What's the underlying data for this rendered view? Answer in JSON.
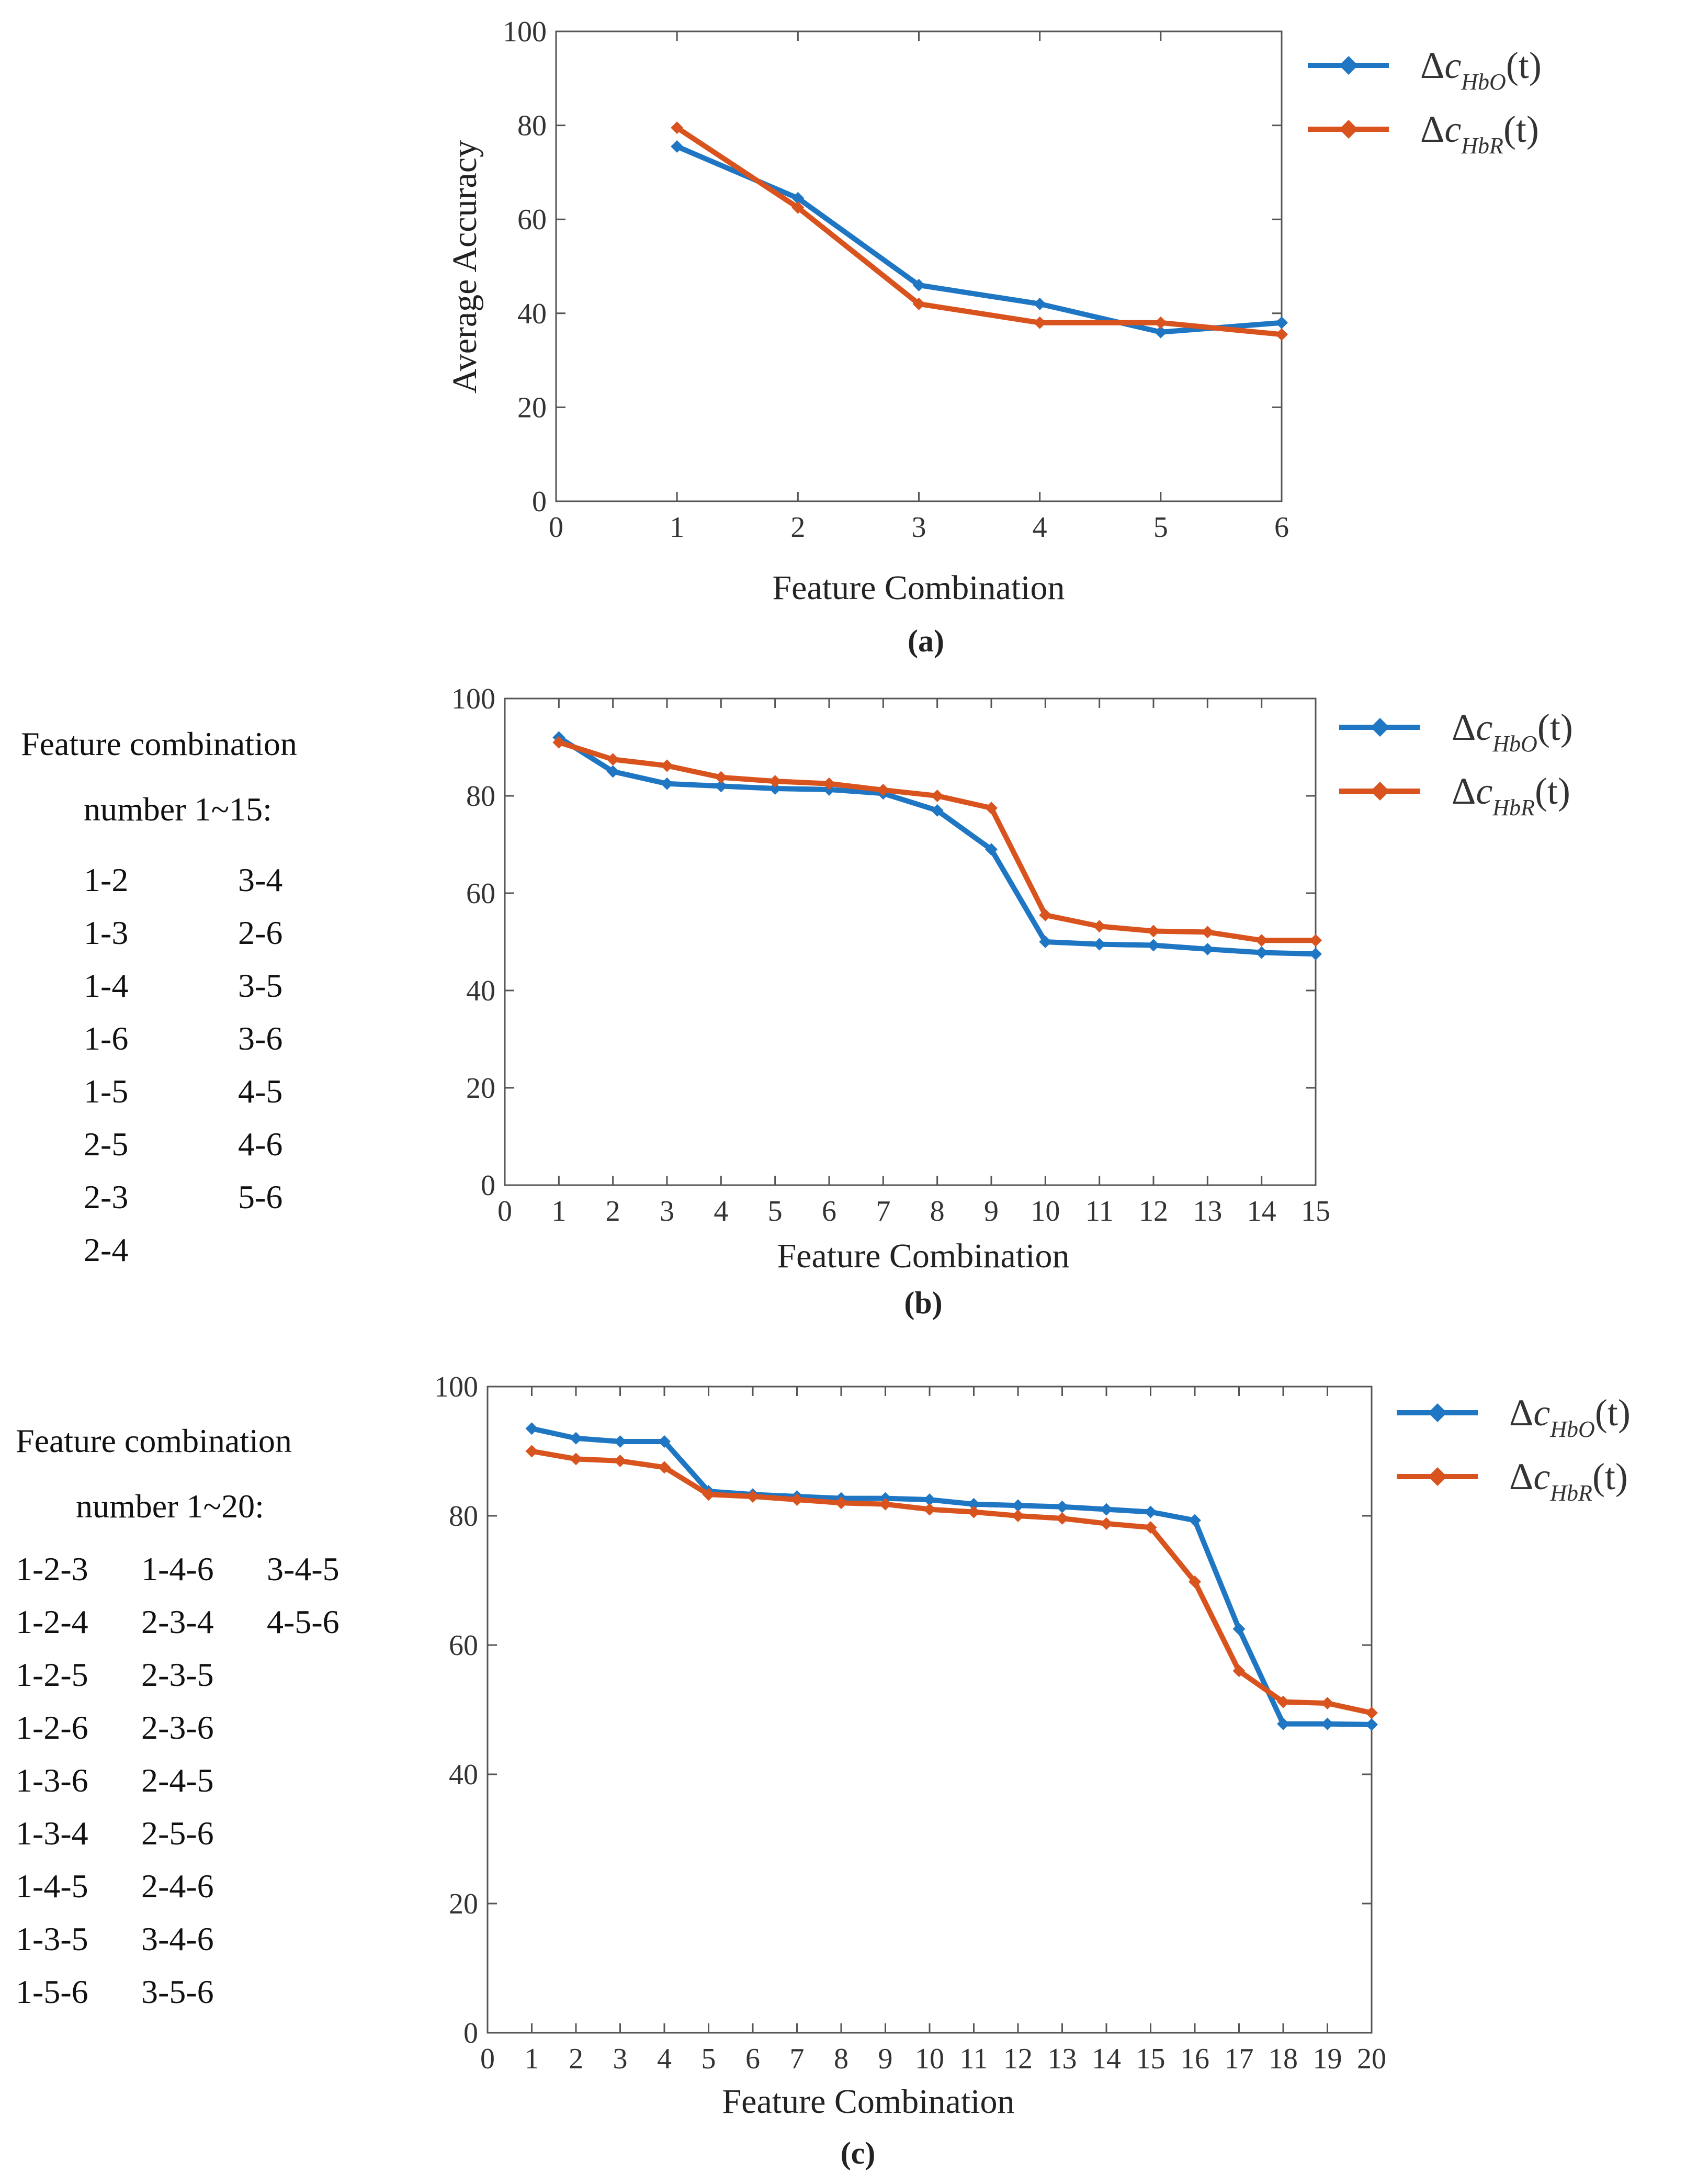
{
  "colors": {
    "hbo": "#1f77c4",
    "hbr": "#d9531e"
  },
  "legend": {
    "hbo": {
      "delta": "Δ",
      "c": "c",
      "sub": "HbO",
      "arg": "(t)"
    },
    "hbr": {
      "delta": "Δ",
      "c": "c",
      "sub": "HbR",
      "arg": "(t)"
    }
  },
  "chart_data": [
    {
      "type": "line",
      "caption": "(a)",
      "xlabel": "Feature Combination",
      "ylabel": "Average Accuracy",
      "xlim": [
        0,
        6
      ],
      "ylim": [
        0,
        100
      ],
      "xticks": [
        0,
        1,
        2,
        3,
        4,
        5,
        6
      ],
      "yticks": [
        0,
        20,
        40,
        60,
        80,
        100
      ],
      "x": [
        1,
        2,
        3,
        4,
        5,
        6
      ],
      "series": [
        {
          "name": "Δc_HbO(t)",
          "key": "hbo",
          "values": [
            75.5,
            64.5,
            46,
            42,
            36,
            38
          ]
        },
        {
          "name": "Δc_HbR(t)",
          "key": "hbr",
          "values": [
            79.5,
            62.5,
            42,
            38,
            38,
            35.5
          ]
        }
      ]
    },
    {
      "type": "line",
      "caption": "(b)",
      "xlabel": "Feature Combination",
      "ylabel": "",
      "xlim": [
        0,
        15
      ],
      "ylim": [
        0,
        100
      ],
      "xticks": [
        0,
        1,
        2,
        3,
        4,
        5,
        6,
        7,
        8,
        9,
        10,
        11,
        12,
        13,
        14,
        15
      ],
      "yticks": [
        0,
        20,
        40,
        60,
        80,
        100
      ],
      "x": [
        1,
        2,
        3,
        4,
        5,
        6,
        7,
        8,
        9,
        10,
        11,
        12,
        13,
        14,
        15
      ],
      "series": [
        {
          "name": "Δc_HbO(t)",
          "key": "hbo",
          "values": [
            92,
            85,
            82.5,
            82,
            81.5,
            81.3,
            80.5,
            77,
            69,
            50,
            49.5,
            49.3,
            48.5,
            47.8,
            47.5
          ]
        },
        {
          "name": "Δc_HbR(t)",
          "key": "hbr",
          "values": [
            91,
            87.5,
            86.2,
            83.8,
            83,
            82.5,
            81.2,
            80,
            77.5,
            55.5,
            53.2,
            52.2,
            52,
            50.3,
            50.3
          ]
        }
      ],
      "side": {
        "heading1": "Feature combination",
        "heading2": "number 1~15:",
        "columns": [
          [
            "1-2",
            "1-3",
            "1-4",
            "1-6",
            "1-5",
            "2-5",
            "2-3",
            "2-4"
          ],
          [
            "3-4",
            "2-6",
            "3-5",
            "3-6",
            "4-5",
            "4-6",
            "5-6"
          ]
        ]
      }
    },
    {
      "type": "line",
      "caption": "(c)",
      "xlabel": "Feature Combination",
      "ylabel": "",
      "xlim": [
        0,
        20
      ],
      "ylim": [
        0,
        100
      ],
      "xticks": [
        0,
        1,
        2,
        3,
        4,
        5,
        6,
        7,
        8,
        9,
        10,
        11,
        12,
        13,
        14,
        15,
        16,
        17,
        18,
        19,
        20
      ],
      "yticks": [
        0,
        20,
        40,
        60,
        80,
        100
      ],
      "x": [
        1,
        2,
        3,
        4,
        5,
        6,
        7,
        8,
        9,
        10,
        11,
        12,
        13,
        14,
        15,
        16,
        17,
        18,
        19,
        20
      ],
      "series": [
        {
          "name": "Δc_HbO(t)",
          "key": "hbo",
          "values": [
            93.5,
            92,
            91.5,
            91.5,
            83.8,
            83.3,
            83,
            82.7,
            82.7,
            82.5,
            81.8,
            81.6,
            81.4,
            81,
            80.6,
            79.3,
            62.5,
            47.8,
            47.8,
            47.7
          ]
        },
        {
          "name": "Δc_HbR(t)",
          "key": "hbr",
          "values": [
            90,
            88.8,
            88.5,
            87.5,
            83.3,
            83,
            82.5,
            82,
            81.8,
            81,
            80.6,
            80,
            79.6,
            78.8,
            78.2,
            69.8,
            56,
            51.2,
            51,
            49.5
          ]
        }
      ],
      "side": {
        "heading1": "Feature combination",
        "heading2": "number 1~20:",
        "columns": [
          [
            "1-2-3",
            "1-2-4",
            "1-2-5",
            "1-2-6",
            "1-3-6",
            "1-3-4",
            "1-4-5",
            "1-3-5",
            "1-5-6"
          ],
          [
            "1-4-6",
            "2-3-4",
            "2-3-5",
            "2-3-6",
            "2-4-5",
            "2-5-6",
            "2-4-6",
            "3-4-6",
            "3-5-6"
          ],
          [
            "3-4-5",
            "4-5-6"
          ]
        ]
      }
    }
  ]
}
